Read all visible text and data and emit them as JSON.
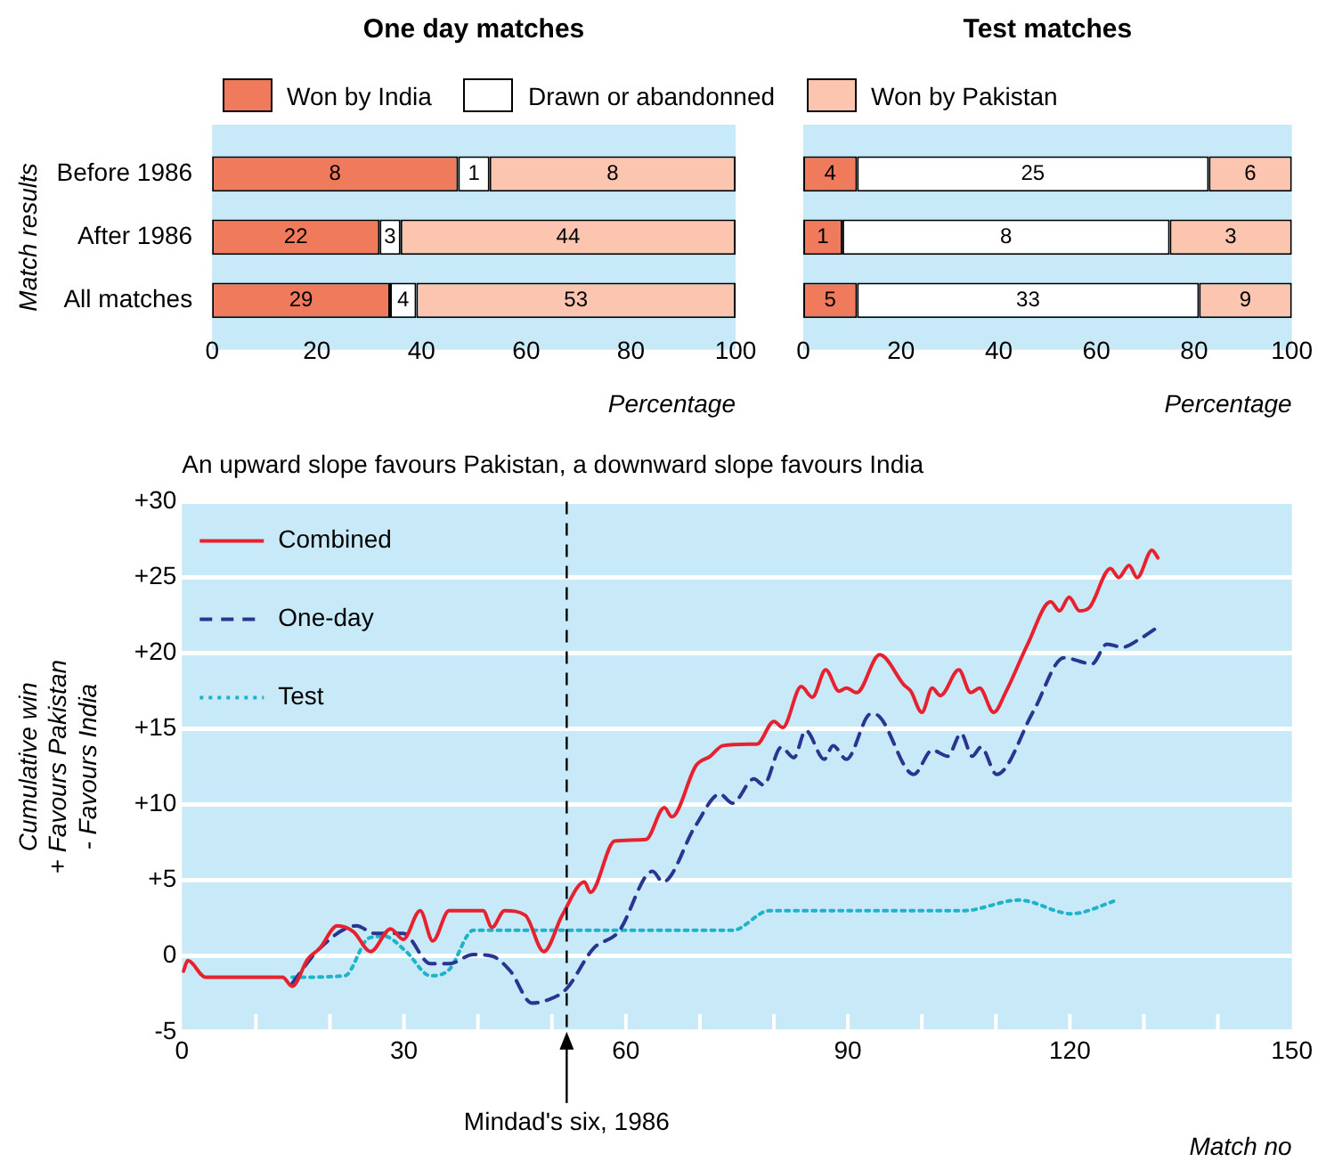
{
  "chart_data": [
    {
      "type": "bar",
      "title": "One day matches",
      "xlabel": "Percentage",
      "ylabel": "Match results",
      "orientation": "horizontal",
      "stacked": true,
      "legend": "top",
      "categories": [
        "Before 1986",
        "After 1986",
        "All matches"
      ],
      "series": [
        {
          "name": "Won by India",
          "color": "#f07a5c",
          "values": [
            47,
            32,
            34
          ]
        },
        {
          "name": "Drawn or abandonned",
          "color": "#ffffff",
          "values": [
            6,
            4,
            5
          ]
        },
        {
          "name": "Won by Pakistan",
          "color": "#fcc5b0",
          "values": [
            47,
            64,
            61
          ]
        }
      ],
      "annotations": [
        {
          "text": "8",
          "x": 23.5,
          "y": "Before 1986"
        },
        {
          "text": "1",
          "x": 50,
          "y": "Before 1986"
        },
        {
          "text": "8",
          "x": 76.5,
          "y": "Before 1986"
        },
        {
          "text": "22",
          "x": 16,
          "y": "After 1986"
        },
        {
          "text": "3",
          "x": 34,
          "y": "After 1986"
        },
        {
          "text": "44",
          "x": 68,
          "y": "After 1986"
        },
        {
          "text": "29",
          "x": 17,
          "y": "All matches"
        },
        {
          "text": "4",
          "x": 36.5,
          "y": "All matches"
        },
        {
          "text": "53",
          "x": 69.5,
          "y": "All matches"
        }
      ],
      "xlim": [
        0,
        100
      ],
      "xticks": [
        0,
        20,
        40,
        60,
        80,
        100
      ]
    },
    {
      "type": "bar",
      "title": "Test matches",
      "xlabel": "Percentage",
      "orientation": "horizontal",
      "stacked": true,
      "tick_labels": "x",
      "categories": [
        null,
        null,
        null
      ],
      "series": [
        {
          "color": "#f07a5c",
          "values": [
            11,
            8,
            11
          ]
        },
        {
          "color": "#ffffff",
          "values": [
            72,
            67,
            70
          ]
        },
        {
          "color": "#fcc5b0",
          "values": [
            17,
            25,
            19
          ]
        }
      ],
      "annotations": [
        "4",
        "25",
        "6",
        "1",
        "8",
        "3",
        "5",
        "33",
        "9"
      ],
      "xlim": [
        0,
        100
      ],
      "xticks": [
        0,
        20,
        40,
        60,
        80,
        100
      ]
    },
    {
      "type": "line",
      "subtitle": "An upward slope favours Pakistan, a downward slope favours India",
      "xlabel": "Match no",
      "ylabel": "Cumulative win\n+ Favours Pakistan\n- Favours India",
      "legend": "top left",
      "grid": "y",
      "marker": "none",
      "series": [
        {
          "name": "Combined",
          "color": "#e8212e",
          "line_style": "solid",
          "x": [
            0.2,
            0.8,
            3.2,
            13.6,
            14.9,
            17,
            18.6,
            21,
            23.2,
            25.5,
            28.2,
            29.9,
            32.2,
            33.9,
            36.1,
            40.7,
            41.9,
            43.6,
            46.4,
            48.9,
            51.4,
            54.4,
            55.2,
            58.5,
            62.7,
            65.2,
            66.2,
            69.5,
            71.4,
            73.1,
            76.5,
            77.7,
            80,
            81.2,
            83.7,
            85.2,
            87,
            88.8,
            89.8,
            91.2,
            94.3,
            97.6,
            98.5,
            100,
            101.4,
            102.5,
            105,
            106.6,
            107.8,
            109.7,
            111.4,
            114.3,
            117.4,
            118.6,
            119.9,
            121.3,
            122.6,
            125.5,
            126.6,
            128,
            129.1,
            131.1,
            131.9
          ],
          "values": [
            -1.0,
            -0.3,
            -1.4,
            -1.4,
            -2.0,
            -0.2,
            0.5,
            2.0,
            1.6,
            0.3,
            1.8,
            1.1,
            3.0,
            1.0,
            3.0,
            3.0,
            1.9,
            3.0,
            2.7,
            0.3,
            2.7,
            4.9,
            4.2,
            7.6,
            7.7,
            9.8,
            9.2,
            12.6,
            13.2,
            13.9,
            14.0,
            14.0,
            15.5,
            15.1,
            17.8,
            17.1,
            18.9,
            17.5,
            17.7,
            17.4,
            19.9,
            17.9,
            17.5,
            16.1,
            17.7,
            17.2,
            18.9,
            17.4,
            17.7,
            16.1,
            17.5,
            20.6,
            23.4,
            22.8,
            23.7,
            22.8,
            23.0,
            25.6,
            25.0,
            25.8,
            25.0,
            26.8,
            26.3
          ]
        },
        {
          "name": "One-day",
          "color": "#2a3590",
          "line_style": "dashed",
          "x": [
            14.9,
            18.6,
            23.6,
            26,
            29.9,
            33.6,
            36.1,
            39.4,
            41.9,
            44.4,
            47.3,
            49.4,
            51.9,
            55.6,
            59,
            63.6,
            65,
            69.4,
            72.7,
            74.4,
            77.3,
            78.6,
            81,
            82.7,
            84.3,
            86.8,
            88,
            89.8,
            93.1,
            94.3,
            98.9,
            101.4,
            103.5,
            105.3,
            106.8,
            108,
            110.1,
            115.1,
            119.2,
            123,
            125,
            127.1,
            129.3,
            131.8
          ],
          "values": [
            -1.8,
            0.5,
            2.0,
            1.5,
            1.5,
            -0.5,
            -0.5,
            0.1,
            0.0,
            -1.0,
            -3.1,
            -2.9,
            -2.2,
            0.5,
            1.6,
            5.6,
            4.9,
            8.6,
            10.7,
            10.1,
            11.7,
            11.3,
            13.8,
            13.1,
            14.9,
            13.0,
            13.9,
            13.0,
            16.0,
            15.8,
            12.0,
            13.6,
            13.2,
            14.7,
            13.2,
            13.8,
            12.0,
            16.2,
            19.7,
            19.3,
            20.6,
            20.4,
            20.9,
            21.7
          ]
        },
        {
          "name": "Test",
          "color": "#1fb3c9",
          "line_style": "dotted",
          "x": [
            14.9,
            22,
            25.3,
            27.4,
            30.3,
            33.6,
            36.1,
            39.4,
            74.4,
            79.4,
            105.6,
            113.1,
            120.2,
            126.4
          ],
          "values": [
            -1.4,
            -1.3,
            1.2,
            1.3,
            0.3,
            -1.3,
            -0.9,
            1.7,
            1.7,
            3.0,
            3.0,
            3.7,
            2.8,
            3.7
          ]
        }
      ],
      "xlim": [
        0,
        150
      ],
      "xticks": [
        0,
        {
          "value": 10,
          "label": null
        },
        {
          "value": 20,
          "label": null
        },
        30,
        {
          "value": 40,
          "label": null
        },
        {
          "value": 50,
          "label": null
        },
        60,
        {
          "value": 70,
          "label": null
        },
        {
          "value": 80,
          "label": null
        },
        90,
        {
          "value": 100,
          "label": null
        },
        {
          "value": 110,
          "label": null
        },
        120,
        {
          "value": 130,
          "label": null
        },
        {
          "value": 140,
          "label": null
        },
        150
      ],
      "ylim": [
        -5,
        30
      ],
      "yticks": [
        -5,
        0,
        {
          "value": 5,
          "label": "+5"
        },
        {
          "value": 10,
          "label": "+10"
        },
        {
          "value": 15,
          "label": "+15"
        },
        {
          "value": 20,
          "label": "+20"
        },
        {
          "value": 25,
          "label": "+25"
        },
        {
          "value": 30,
          "label": "+30"
        }
      ],
      "ref_lines": [
        {
          "axis": "x",
          "value": 52,
          "label": "Mindad's six, 1986",
          "color": "#000000",
          "line_style": "dashed"
        }
      ]
    }
  ]
}
